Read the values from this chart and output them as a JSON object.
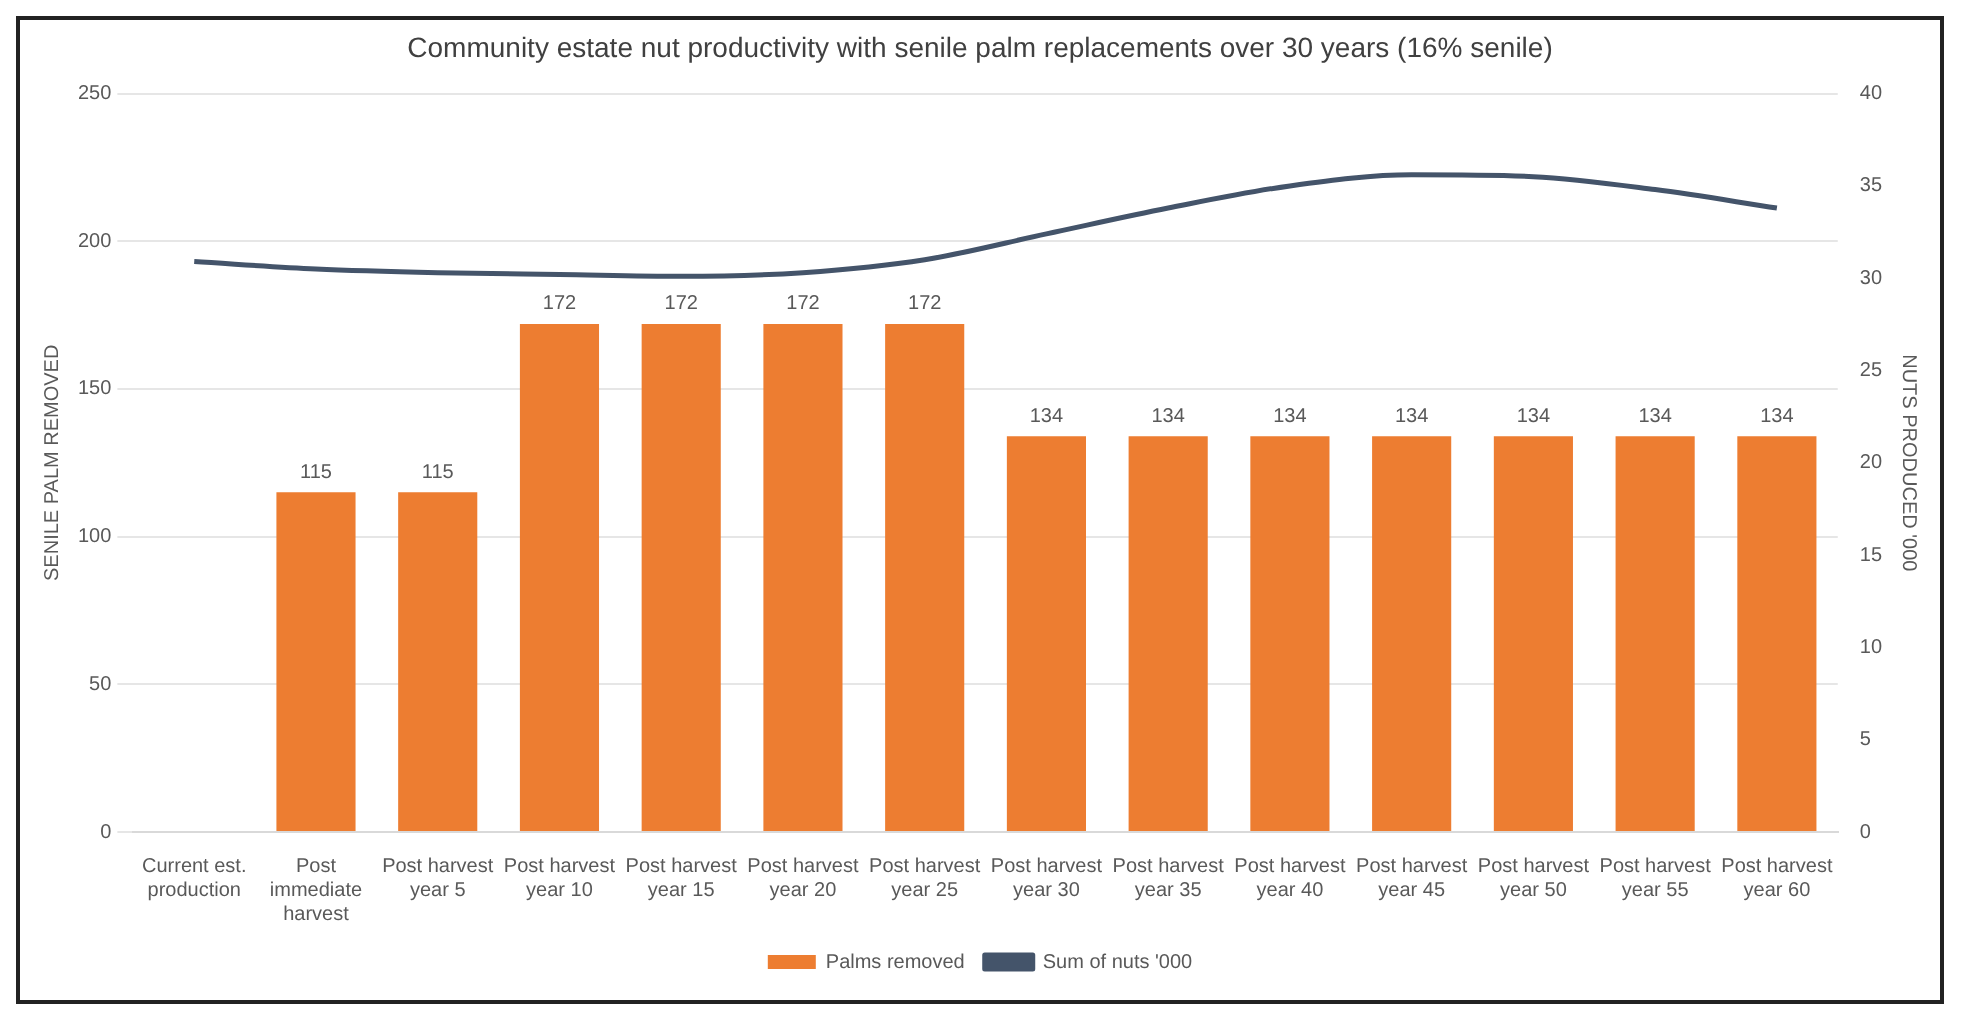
{
  "chart_data": {
    "type": "bar",
    "title": "Community estate nut productivity with senile palm replacements over 30 years (16% senile)",
    "categories": [
      "Current est. production",
      "Post immediate harvest",
      "Post harvest year 5",
      "Post harvest year 10",
      "Post harvest year 15",
      "Post harvest year 20",
      "Post harvest year 25",
      "Post harvest year 30",
      "Post harvest year 35",
      "Post harvest year 40",
      "Post harvest year 45",
      "Post harvest year 50",
      "Post harvest year 55",
      "Post harvest year 60"
    ],
    "series": [
      {
        "name": "Palms removed",
        "color": "#ed7d31",
        "values": [
          null,
          115,
          115,
          172,
          172,
          172,
          172,
          134,
          134,
          134,
          134,
          134,
          134,
          134
        ],
        "value_labels": [
          null,
          "115",
          "115",
          "172",
          "172",
          "172",
          "172",
          "134",
          "134",
          "134",
          "134",
          "134",
          "134",
          "134"
        ]
      },
      {
        "name": "Sum of nuts '000",
        "type": "line",
        "axis": "y2",
        "color": "#44546a",
        "values": [
          30.9,
          30.5,
          30.3,
          30.2,
          30.1,
          30.3,
          31.0,
          32.4,
          33.8,
          35.0,
          35.6,
          35.5,
          34.8,
          33.8
        ]
      }
    ],
    "ylabel": "SENILE PALM REMOVED",
    "y2label": "NUTS PRODUCED '000",
    "ylim": [
      0,
      250
    ],
    "yticks": [
      0,
      50,
      100,
      150,
      200,
      250
    ],
    "y2lim": [
      0,
      40
    ],
    "y2ticks": [
      0,
      5,
      10,
      15,
      20,
      25,
      30,
      35,
      40
    ],
    "grid": "y",
    "legend": "bottom",
    "marker": "none",
    "line_style": "solid"
  }
}
